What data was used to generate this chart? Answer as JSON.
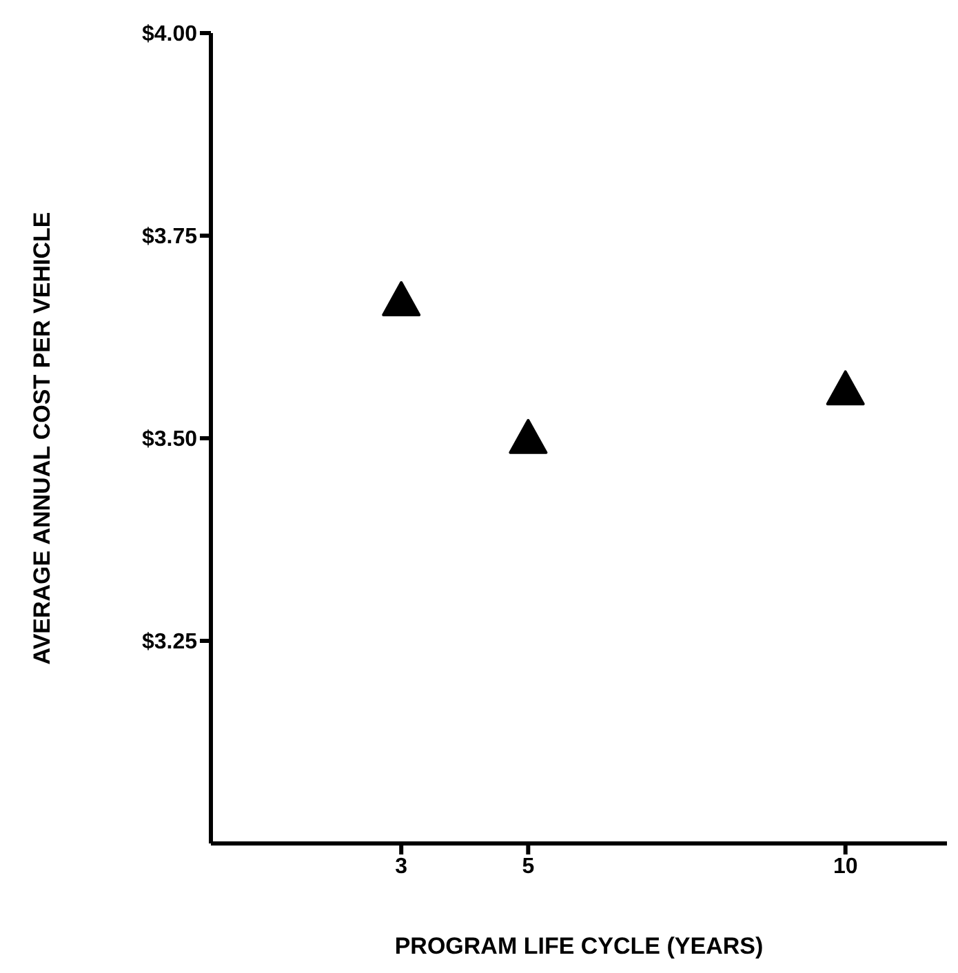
{
  "chart_data": {
    "type": "scatter",
    "xlabel": "PROGRAM LIFE CYCLE (YEARS)",
    "ylabel": "AVERAGE ANNUAL COST PER VEHICLE",
    "x": [
      3,
      5,
      10
    ],
    "series": [
      {
        "color": "#000000",
        "values": [
          3.67,
          3.5,
          3.56
        ]
      }
    ],
    "xlim": [
      0,
      11.6
    ],
    "xticks": [
      3,
      5,
      10
    ],
    "ylim": [
      3.0,
      4.0
    ],
    "yticks": [
      {
        "value": 3.25,
        "label": "$3.25"
      },
      {
        "value": 3.5,
        "label": "$3.50"
      },
      {
        "value": 3.75,
        "label": "$3.75"
      },
      {
        "value": 4.0,
        "label": "$4.00"
      }
    ],
    "marker": "triangle",
    "grid": false,
    "legend": false
  }
}
